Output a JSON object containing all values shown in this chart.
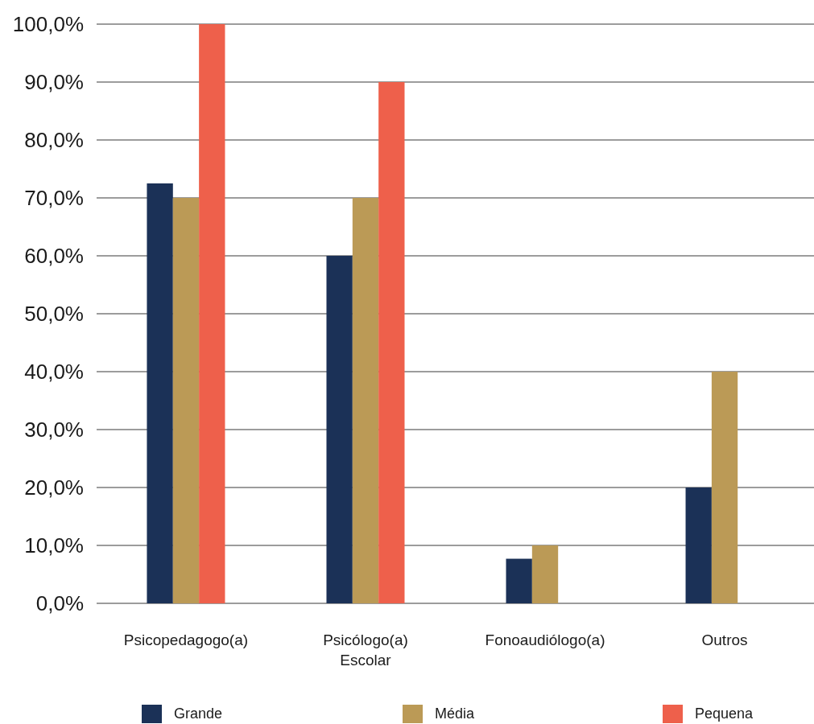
{
  "chart_data": {
    "type": "bar",
    "categories": [
      "Psicopedagogo(a)",
      "Psicólogo(a) Escolar",
      "Fonoaudiólogo(a)",
      "Outros"
    ],
    "series": [
      {
        "name": "Grande",
        "color": "#1b3157",
        "values": [
          72.5,
          60,
          7.7,
          20
        ]
      },
      {
        "name": "Média",
        "color": "#bb9a56",
        "values": [
          70,
          70,
          10,
          40
        ]
      },
      {
        "name": "Pequena",
        "color": "#ee604b",
        "values": [
          100,
          90,
          0,
          0
        ]
      }
    ],
    "ylim": [
      0,
      100
    ],
    "yticks": [
      {
        "value": 0,
        "label": "0,0%"
      },
      {
        "value": 10,
        "label": "10,0%"
      },
      {
        "value": 20,
        "label": "20,0%"
      },
      {
        "value": 30,
        "label": "30,0%"
      },
      {
        "value": 40,
        "label": "40,0%"
      },
      {
        "value": 50,
        "label": "50,0%"
      },
      {
        "value": 60,
        "label": "60,0%"
      },
      {
        "value": 70,
        "label": "70,0%"
      },
      {
        "value": 80,
        "label": "80,0%"
      },
      {
        "value": 90,
        "label": "90,0%"
      },
      {
        "value": 100,
        "label": "100,0%"
      }
    ],
    "grid": "y",
    "legend": "bottom"
  }
}
